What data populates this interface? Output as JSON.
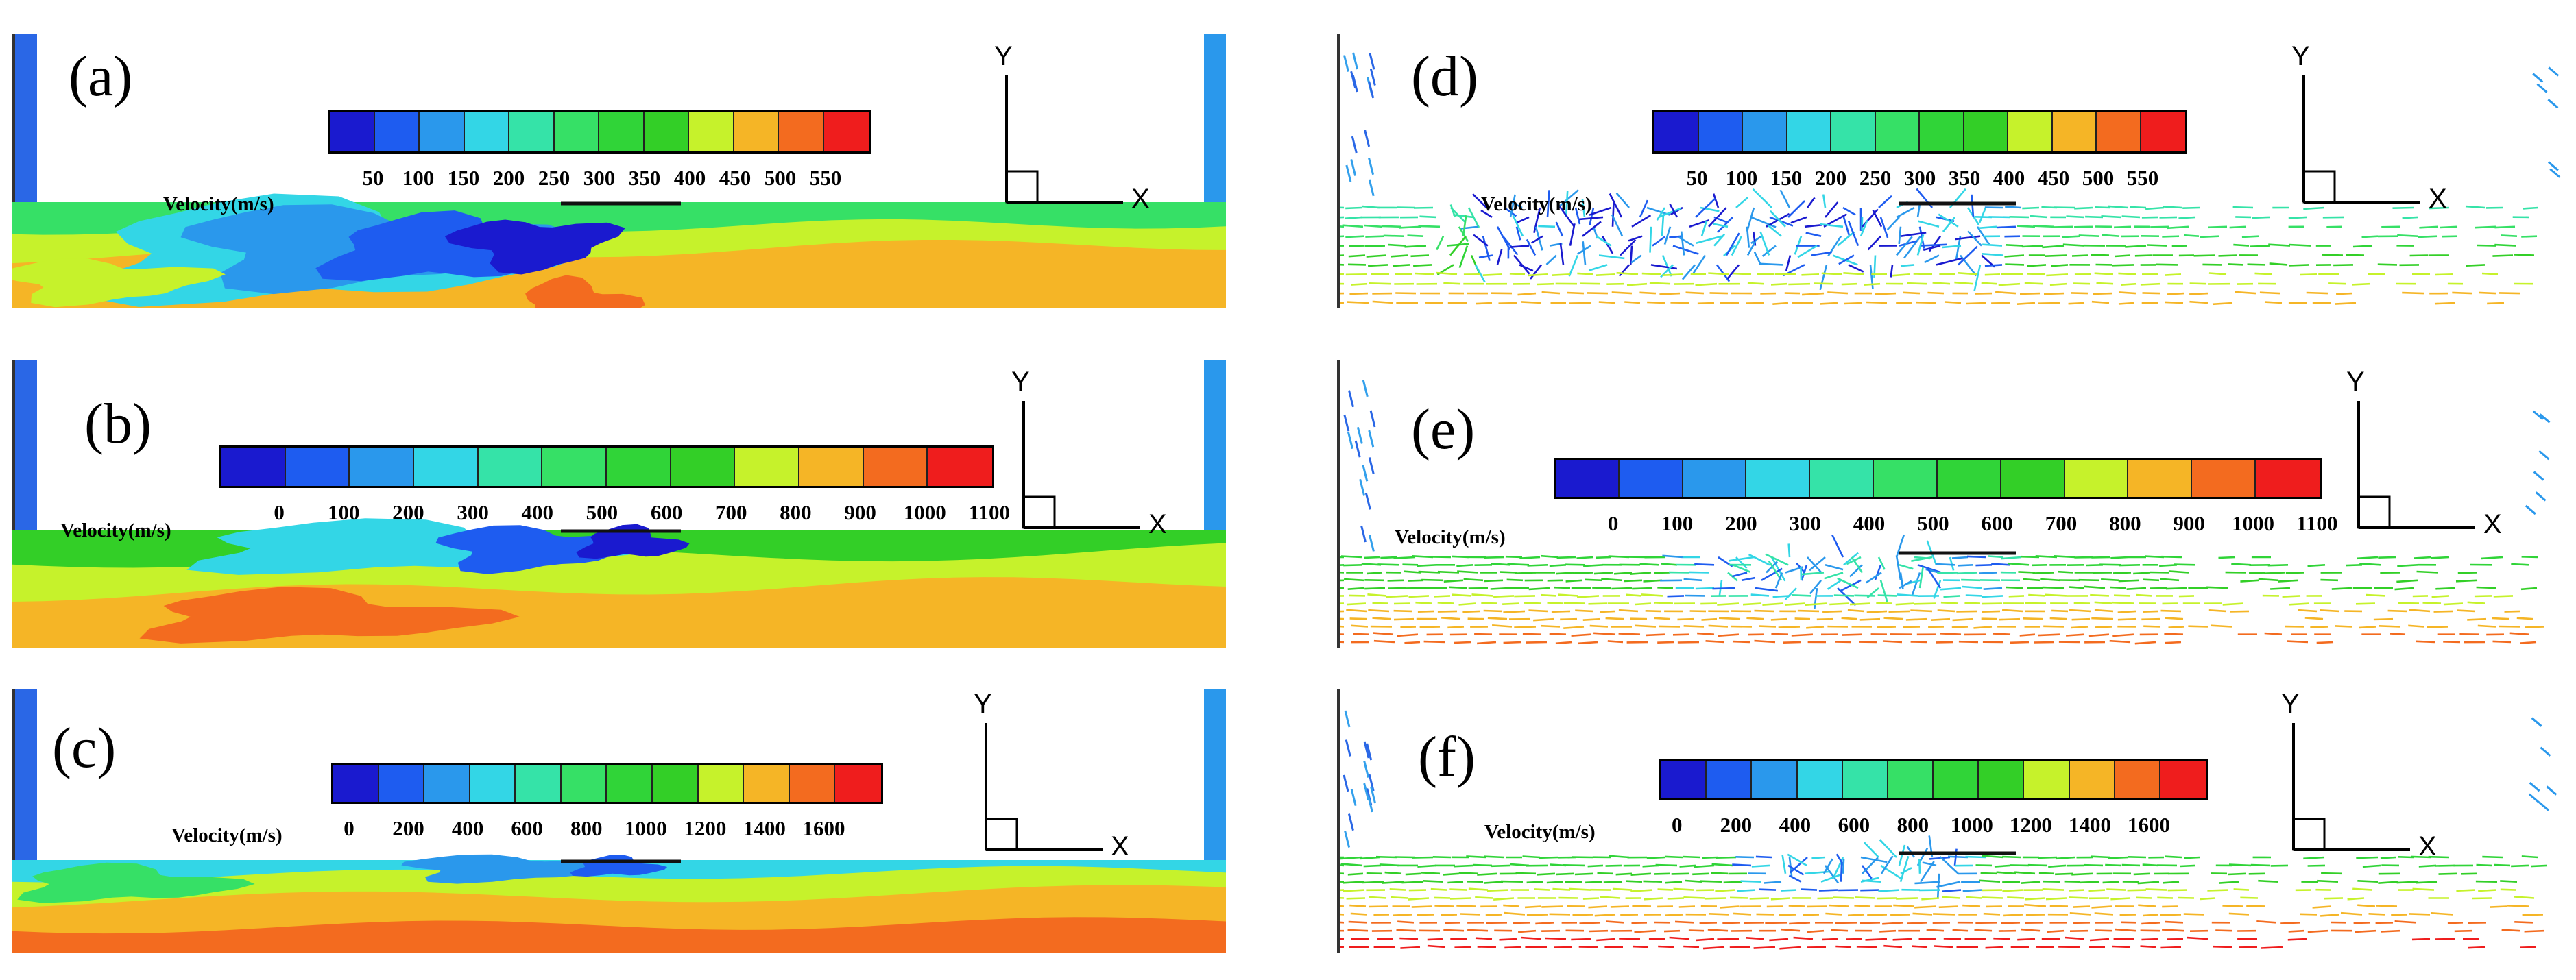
{
  "legend_title": "Velocity(m/s)",
  "axis_labels": {
    "y": "Y",
    "x": "X"
  },
  "colors": [
    "#1a1acf",
    "#1e5cf0",
    "#2a98ec",
    "#33d6e6",
    "#35e3a8",
    "#36e066",
    "#30d438",
    "#33cf27",
    "#c6f22b",
    "#f5b526",
    "#f36b1f",
    "#ef1d1d"
  ],
  "panels": [
    {
      "id": "a",
      "label": "(a)",
      "type": "contour",
      "ticks": [
        "50",
        "100",
        "150",
        "200",
        "250",
        "300",
        "350",
        "400",
        "450",
        "500",
        "550"
      ]
    },
    {
      "id": "b",
      "label": "(b)",
      "type": "contour",
      "ticks": [
        "0",
        "100",
        "200",
        "300",
        "400",
        "500",
        "600",
        "700",
        "800",
        "900",
        "1000",
        "1100"
      ]
    },
    {
      "id": "c",
      "label": "(c)",
      "type": "contour",
      "ticks": [
        "0",
        "200",
        "400",
        "600",
        "800",
        "1000",
        "1200",
        "1400",
        "1600"
      ]
    },
    {
      "id": "d",
      "label": "(d)",
      "type": "vector",
      "ticks": [
        "50",
        "100",
        "150",
        "200",
        "250",
        "300",
        "350",
        "400",
        "450",
        "500",
        "550"
      ]
    },
    {
      "id": "e",
      "label": "(e)",
      "type": "vector",
      "ticks": [
        "0",
        "100",
        "200",
        "300",
        "400",
        "500",
        "600",
        "700",
        "800",
        "900",
        "1000",
        "1100"
      ]
    },
    {
      "id": "f",
      "label": "(f)",
      "type": "vector",
      "ticks": [
        "0",
        "200",
        "400",
        "600",
        "800",
        "1000",
        "1200",
        "1400",
        "1600"
      ]
    }
  ]
}
